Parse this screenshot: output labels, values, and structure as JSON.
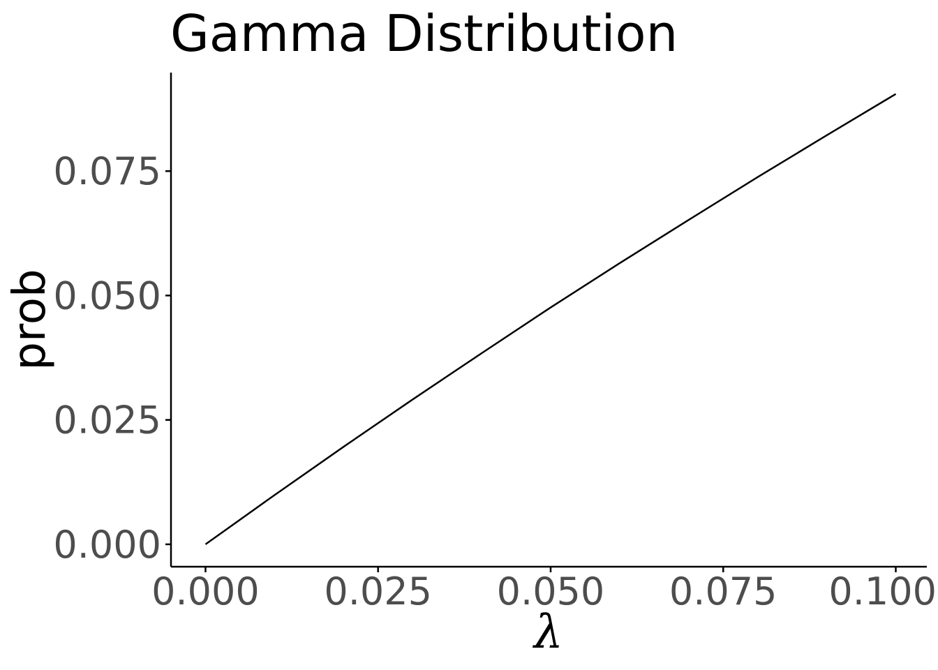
{
  "chart_data": {
    "type": "line",
    "title": "Gamma Distribution",
    "xlabel": "λ",
    "ylabel": "prob",
    "xlim": [
      -0.005,
      0.1045
    ],
    "ylim": [
      -0.0045,
      0.0948
    ],
    "x_ticks": [
      0.0,
      0.025,
      0.05,
      0.075,
      0.1
    ],
    "x_tick_labels": [
      "0.000",
      "0.025",
      "0.050",
      "0.075",
      "0.100"
    ],
    "y_ticks": [
      0.0,
      0.025,
      0.05,
      0.075
    ],
    "y_tick_labels": [
      "0.000",
      "0.025",
      "0.050",
      "0.075"
    ],
    "grid": false,
    "line_color": "#000000",
    "axis_color": "#000000",
    "tick_label_color": "#4d4d4d",
    "series": [
      {
        "x": [
          0.0,
          0.01,
          0.02,
          0.03,
          0.04,
          0.05,
          0.06,
          0.07,
          0.08,
          0.09,
          0.1
        ],
        "values": [
          0.0,
          0.0099,
          0.0196,
          0.0291,
          0.0384,
          0.0476,
          0.0565,
          0.0652,
          0.0738,
          0.0822,
          0.0905
        ]
      }
    ]
  }
}
